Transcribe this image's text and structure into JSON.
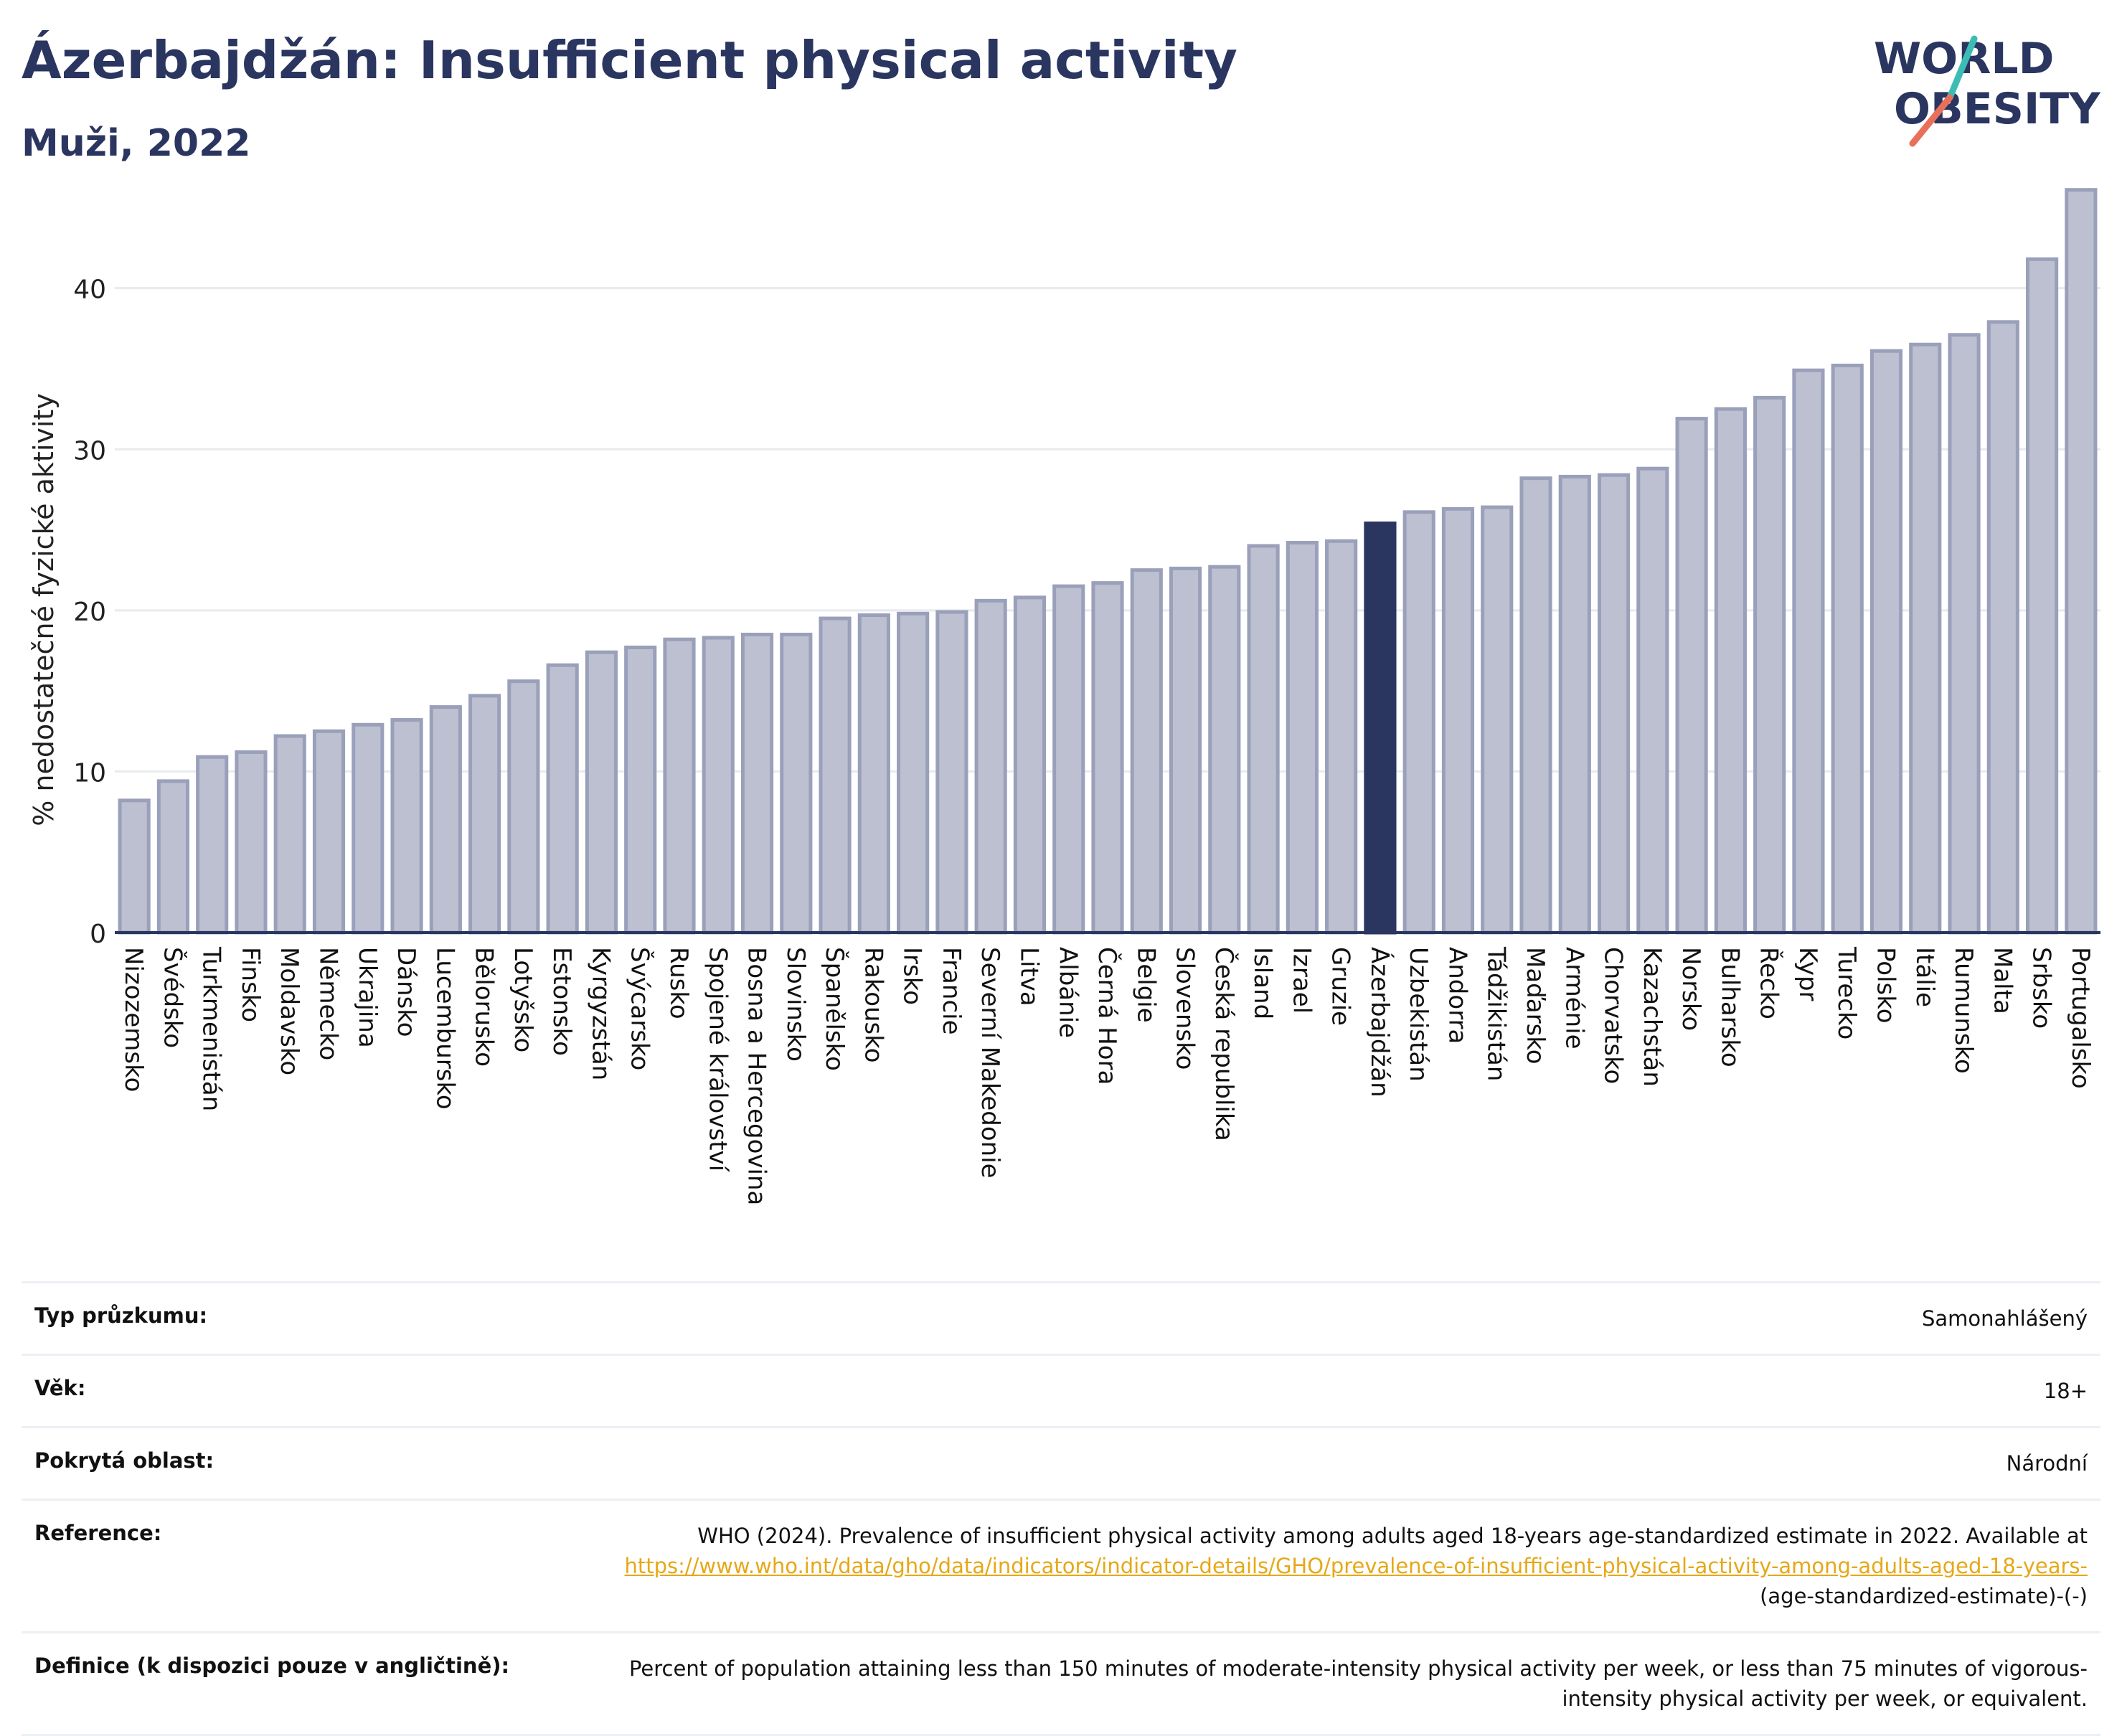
{
  "header": {
    "title": "Ázerbajdžán: Insufficient physical activity",
    "subtitle": "Muži, 2022"
  },
  "logo": {
    "line1": "WORLD",
    "line2": "OBESITY"
  },
  "colors": {
    "bar": "#bcc0d0",
    "bar_edge": "#9aa0ba",
    "highlight": "#2a3560",
    "text": "#2a3560",
    "accent_slash_a": "#e8705a",
    "accent_slash_b": "#3cbcb5"
  },
  "chart_data": {
    "type": "bar",
    "ylabel": "% nedostatečné fyzické aktivity",
    "ylim": [
      0,
      48
    ],
    "yticks": [
      0,
      10,
      20,
      30,
      40
    ],
    "grid": true,
    "highlight": "Ázerbajdžán",
    "categories": [
      "Nizozemsko",
      "Švédsko",
      "Turkmenistán",
      "Finsko",
      "Moldavsko",
      "Německo",
      "Ukrajina",
      "Dánsko",
      "Lucembursko",
      "Bělorusko",
      "Lotyšsko",
      "Estonsko",
      "Kyrgyzstán",
      "Švýcarsko",
      "Rusko",
      "Spojené království",
      "Bosna a Hercegovina",
      "Slovinsko",
      "Španělsko",
      "Rakousko",
      "Irsko",
      "Francie",
      "Severní Makedonie",
      "Litva",
      "Albánie",
      "Černá Hora",
      "Belgie",
      "Slovensko",
      "Česká republika",
      "Island",
      "Izrael",
      "Gruzie",
      "Ázerbajdžán",
      "Uzbekistán",
      "Andorra",
      "Tádžikistán",
      "Maďarsko",
      "Arménie",
      "Chorvatsko",
      "Kazachstán",
      "Norsko",
      "Bulharsko",
      "Řecko",
      "Kypr",
      "Turecko",
      "Polsko",
      "Itálie",
      "Rumunsko",
      "Malta",
      "Srbsko",
      "Portugalsko"
    ],
    "values": [
      8.2,
      9.4,
      10.9,
      11.2,
      12.2,
      12.5,
      12.9,
      13.2,
      14.0,
      14.7,
      15.6,
      16.6,
      17.4,
      17.7,
      18.2,
      18.3,
      18.5,
      18.5,
      19.5,
      19.7,
      19.8,
      19.9,
      20.6,
      20.8,
      21.5,
      21.7,
      22.5,
      22.6,
      22.7,
      24.0,
      24.2,
      24.3,
      25.4,
      26.1,
      26.3,
      26.4,
      28.2,
      28.3,
      28.4,
      28.8,
      31.9,
      32.5,
      33.2,
      34.9,
      35.2,
      36.1,
      36.5,
      37.1,
      37.9,
      41.8,
      46.1
    ]
  },
  "info": {
    "rows": [
      {
        "key": "Typ průzkumu:",
        "value": "Samonahlášený"
      },
      {
        "key": "Věk:",
        "value": "18+"
      },
      {
        "key": "Pokrytá oblast:",
        "value": "Národní"
      }
    ],
    "reference": {
      "key": "Reference:",
      "text": "WHO (2024). Prevalence of insufficient physical activity among adults aged 18-years age-standardized estimate in 2022. Available at",
      "link": "https://www.who.int/data/gho/data/indicators/indicator-details/GHO/prevalence-of-insufficient-physical-activity-among-adults-aged-18-years-",
      "tail": "(age-standardized-estimate)-(-)"
    },
    "definition": {
      "key": "Definice (k dispozici pouze v angličtině):",
      "value": "Percent of population attaining less than 150 minutes of moderate-intensity physical activity per week, or less than 75 minutes of vigorous-intensity physical activity per week, or equivalent."
    }
  }
}
